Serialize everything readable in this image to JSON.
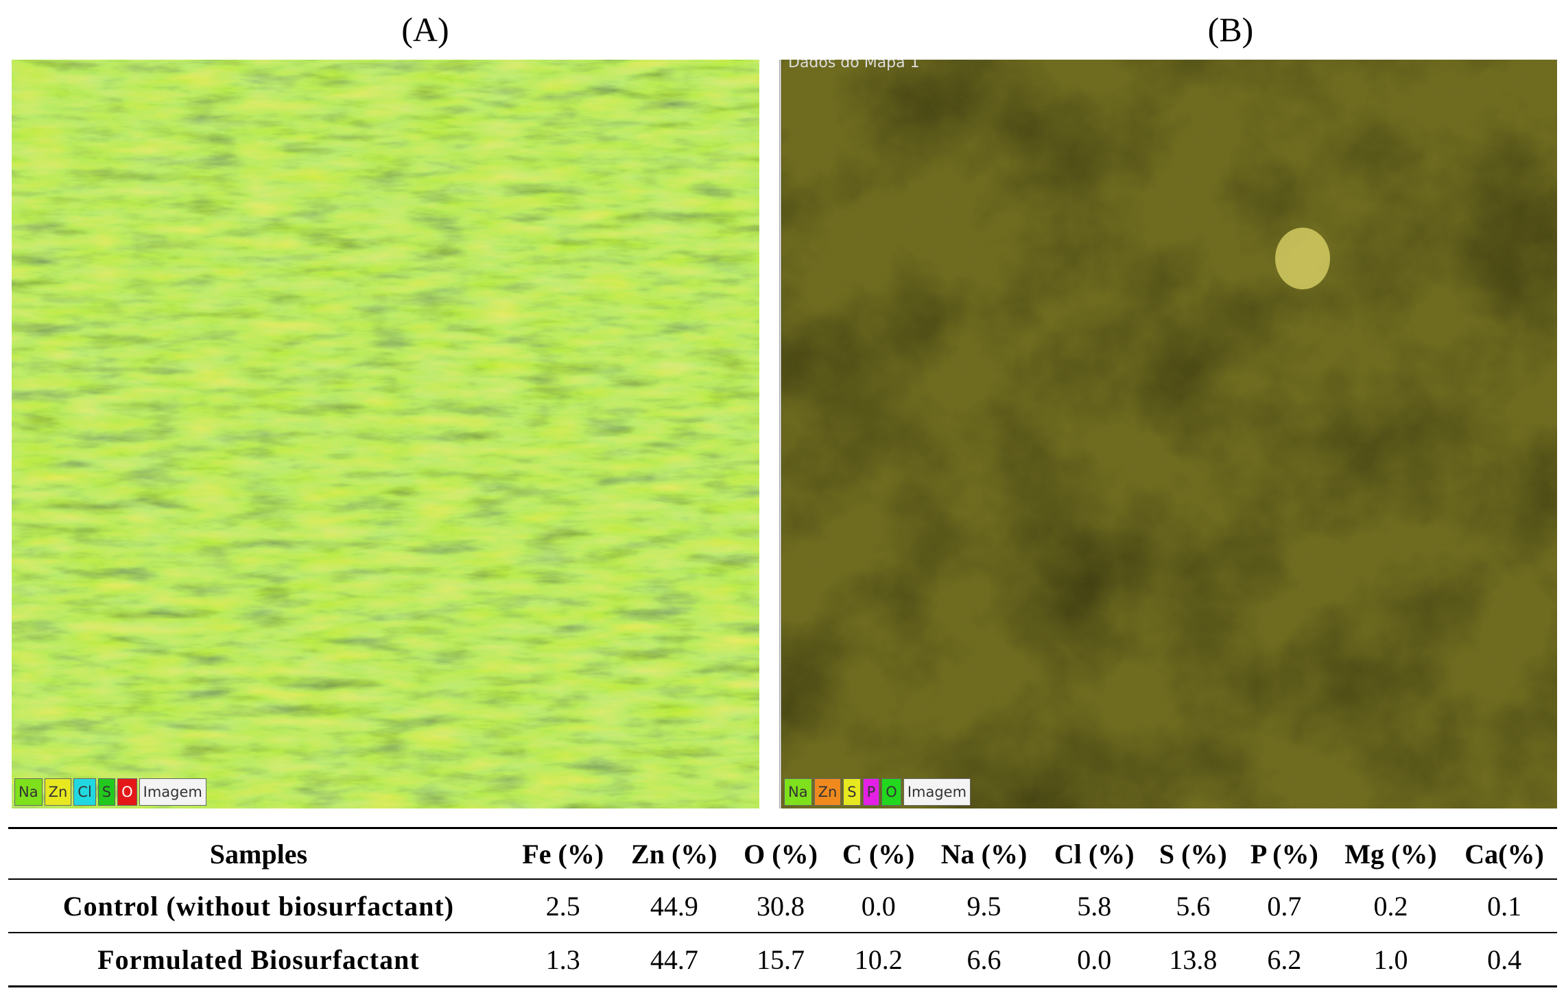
{
  "panels": [
    {
      "label": "(A)",
      "legend": [
        "Na",
        "Zn",
        "Cl",
        "S",
        "O",
        "Imagem"
      ]
    },
    {
      "label": "(B)",
      "caption": "Dados do Mapa 1",
      "legend": [
        "Na",
        "Zn",
        "S",
        "P",
        "O",
        "Imagem"
      ]
    }
  ],
  "table": {
    "header": [
      "Samples",
      "Fe (%)",
      "Zn (%)",
      "O (%)",
      "C (%)",
      "Na (%)",
      "Cl (%)",
      "S (%)",
      "P (%)",
      "Mg (%)",
      "Ca(%)"
    ],
    "rows": [
      [
        "Control (without biosurfactant)",
        "2.5",
        "44.9",
        "30.8",
        "0.0",
        "9.5",
        "5.8",
        "5.6",
        "0.7",
        "0.2",
        "0.1"
      ],
      [
        "Formulated Biosurfactant",
        "1.3",
        "44.7",
        "15.7",
        "10.2",
        "6.6",
        "0.0",
        "13.8",
        "6.2",
        "1.0",
        "0.4"
      ]
    ]
  }
}
